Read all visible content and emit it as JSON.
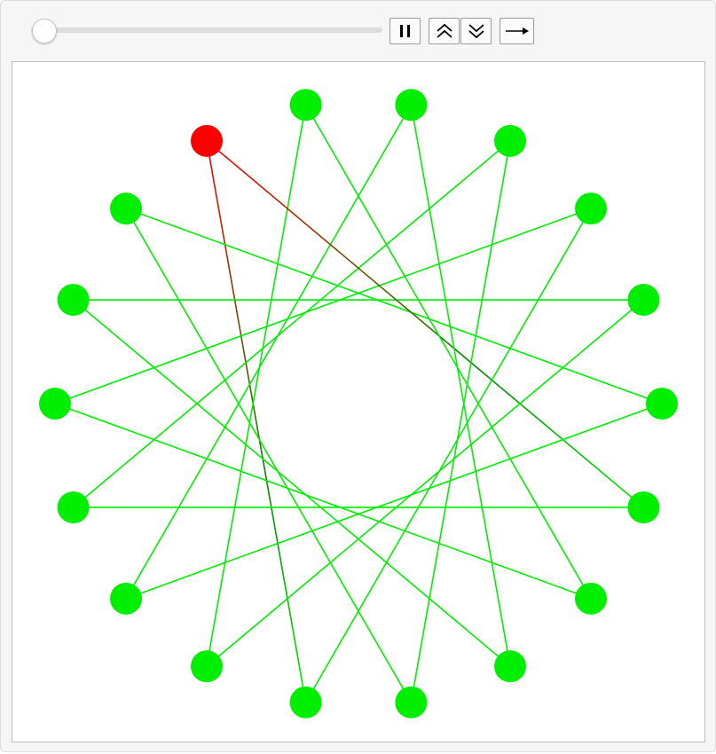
{
  "controls": {
    "slider": {
      "value": 0.0
    },
    "buttons": [
      {
        "name": "pause-button",
        "icon": "pause-icon"
      },
      {
        "name": "faster-button",
        "icon": "double-chevron-up-icon"
      },
      {
        "name": "slower-button",
        "icon": "double-chevron-down-icon"
      },
      {
        "name": "direction-button",
        "icon": "arrow-right-icon"
      }
    ]
  },
  "graphic": {
    "point_count": 18,
    "step": 7,
    "colors": {
      "point": "#00ee00",
      "line": "#00ee00",
      "active_point": "#ff0000",
      "active_line_start": "#ff0000",
      "active_line_end": "#008800"
    },
    "active_points": [
      7
    ]
  }
}
